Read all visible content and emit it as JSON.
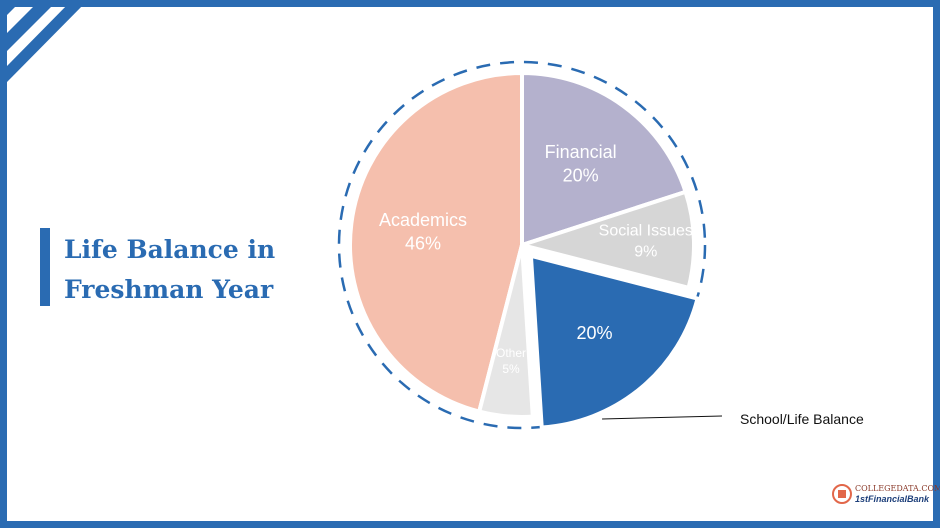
{
  "slide": {
    "title_line1": "Life Balance in",
    "title_line2": "Freshman Year",
    "accent_color": "#2a6bb2"
  },
  "chart_data": {
    "type": "pie",
    "title": "Life Balance in Freshman Year",
    "slices": [
      {
        "label": "Academics",
        "value": 46,
        "display": "46%",
        "color": "#f5bfad",
        "label_color": "#ffffff"
      },
      {
        "label": "Financial",
        "value": 20,
        "display": "20%",
        "color": "#b4b1cd",
        "label_color": "#ffffff"
      },
      {
        "label": "Social Issues",
        "value": 9,
        "display": "9%",
        "color": "#d6d6d6",
        "label_color": "#ffffff"
      },
      {
        "label": "School/Life Balance",
        "value": 20,
        "display": "20%",
        "color": "#2a6bb2",
        "label_color": "#ffffff",
        "exploded": true,
        "external_label": true
      },
      {
        "label": "Other",
        "value": 5,
        "display": "5%",
        "color": "#e6e6e6",
        "label_color": "#ffffff"
      }
    ],
    "outline": "dashed circle",
    "callout_label": "School/Life Balance"
  },
  "logo": {
    "top_text": "COLLEGEDATA.COM",
    "bottom_text": "1stFinancialBank",
    "seal_icon": "building-seal-icon"
  }
}
